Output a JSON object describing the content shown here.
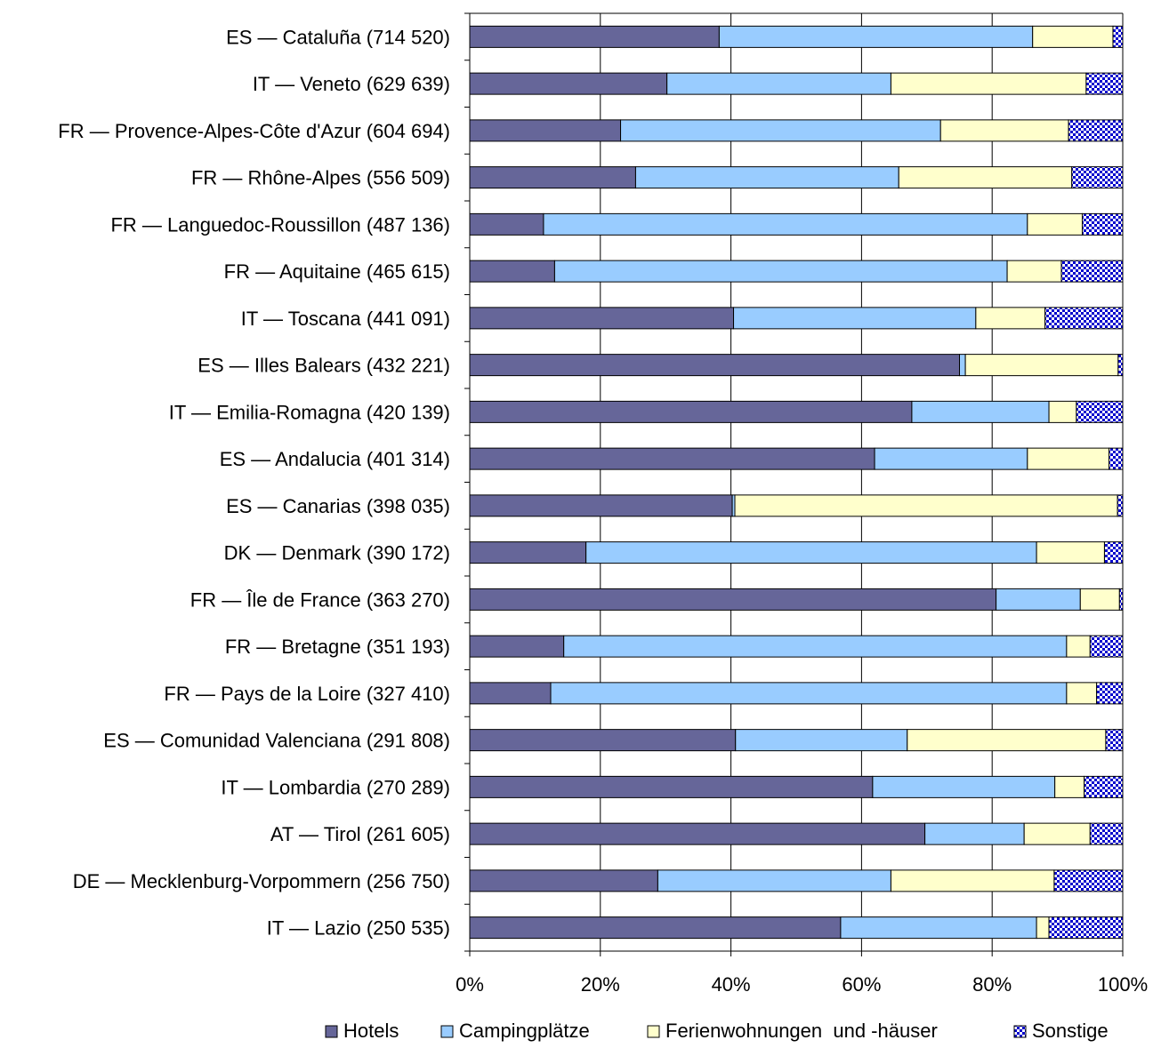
{
  "chart_data": {
    "type": "bar",
    "orientation": "horizontal",
    "stacked": "percent",
    "categories": [
      "ES — Cataluña (714 520)",
      "IT — Veneto (629 639)",
      "FR — Provence-Alpes-Côte d'Azur (604 694)",
      "FR — Rhône-Alpes (556 509)",
      "FR — Languedoc-Roussillon (487 136)",
      "FR — Aquitaine (465 615)",
      "IT — Toscana (441 091)",
      "ES — Illes Balears (432 221)",
      "IT — Emilia-Romagna (420 139)",
      "ES — Andalucia (401 314)",
      "ES — Canarias (398 035)",
      "DK — Denmark (390 172)",
      "FR — Île de France (363 270)",
      "FR — Bretagne (351 193)",
      "FR — Pays de la Loire (327 410)",
      "ES — Comunidad Valenciana (291 808)",
      "IT — Lombardia (270 289)",
      "AT — Tirol (261 605)",
      "DE — Mecklenburg-Vorpommern (256 750)",
      "IT — Lazio (250 535)"
    ],
    "series": [
      {
        "name": "Hotels",
        "color": "#666699",
        "pattern": "solid",
        "values": [
          38.2,
          30.2,
          23.1,
          25.4,
          11.3,
          13.0,
          40.4,
          75.0,
          67.7,
          62.0,
          40.2,
          17.8,
          80.6,
          14.4,
          12.4,
          40.7,
          61.7,
          69.7,
          28.8,
          56.8
        ]
      },
      {
        "name": "Campingplätze",
        "color": "#99ccff",
        "pattern": "solid",
        "values": [
          48.0,
          34.3,
          49.0,
          40.3,
          74.1,
          69.3,
          37.1,
          0.9,
          21.0,
          23.4,
          0.4,
          69.0,
          12.9,
          77.0,
          79.0,
          26.3,
          27.9,
          15.2,
          35.7,
          30.0
        ]
      },
      {
        "name": "Ferienwohnungen  und -häuser",
        "color": "#ffffcc",
        "pattern": "solid",
        "values": [
          12.3,
          29.9,
          19.6,
          26.5,
          8.4,
          8.3,
          10.6,
          23.4,
          4.2,
          12.5,
          58.6,
          10.4,
          6.0,
          3.6,
          4.6,
          30.4,
          4.5,
          10.1,
          25.0,
          1.9
        ]
      },
      {
        "name": "Sonstige",
        "color": "#0000cc",
        "pattern": "dots",
        "values": [
          1.5,
          5.6,
          8.3,
          7.8,
          6.2,
          9.4,
          11.9,
          0.7,
          7.1,
          2.1,
          0.8,
          2.8,
          0.5,
          5.0,
          4.0,
          2.6,
          5.9,
          5.0,
          10.5,
          11.3
        ]
      }
    ],
    "xaxis": {
      "min": 0,
      "max": 100,
      "step": 20,
      "tick_labels": [
        "0%",
        "20%",
        "40%",
        "60%",
        "80%",
        "100%"
      ]
    },
    "grid": "vertical",
    "legend": "bottom",
    "title": "",
    "xlabel": "",
    "ylabel": ""
  }
}
